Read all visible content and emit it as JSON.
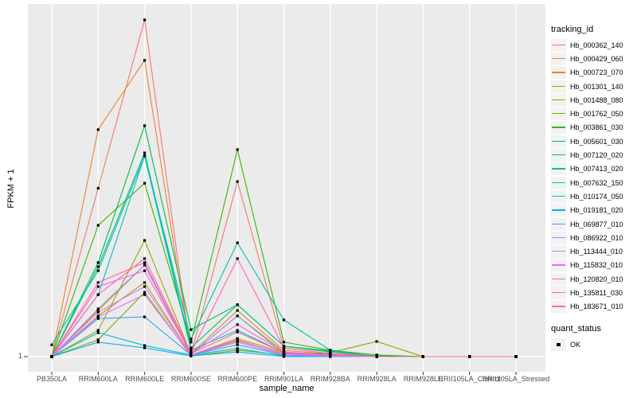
{
  "chart_data": {
    "type": "line",
    "title": "",
    "xlabel": "sample_name",
    "ylabel": "FPKM + 1",
    "categories": [
      "PB350LA",
      "RRIM600LA",
      "RRIM600LE",
      "RRIM600SE",
      "RRIM600PE",
      "RRIM901LA",
      "RRIM928BA",
      "RRIM928LA",
      "RRIM928LE",
      "RRII105LA_Control",
      "RRII105LA_Stressed"
    ],
    "y_axis": {
      "tick_labels": [
        "1"
      ],
      "note": "Only the value 1 is labeled on the y axis; series values below are relative peak heights in % of the tallest peak (Hb_000362_140 at RRIM600LE = 100)."
    },
    "legend_title": "tracking_id",
    "panel_bg": "#EBEBEB",
    "grid_color": "#FFFFFF",
    "point_color": "#000000",
    "legend_key_bg": "#F2F2F2",
    "series": [
      {
        "name": "Hb_000362_140",
        "color": "#F8766D",
        "values": [
          0,
          50,
          100,
          0.7,
          52,
          2.6,
          0.9,
          0.2,
          0,
          0,
          0
        ]
      },
      {
        "name": "Hb_000429_060",
        "color": "#EA8331",
        "values": [
          0,
          67.4,
          88,
          0.9,
          13.7,
          1.9,
          0.7,
          0.2,
          0,
          0,
          0
        ]
      },
      {
        "name": "Hb_000723_070",
        "color": "#D89000",
        "values": [
          0,
          13.7,
          27.2,
          0.5,
          5.4,
          1.2,
          0.5,
          0,
          0,
          0,
          0
        ]
      },
      {
        "name": "Hb_001301_140",
        "color": "#C09B00",
        "values": [
          0,
          12.1,
          22,
          0.5,
          4.7,
          0.9,
          0.2,
          0,
          0,
          0,
          0
        ]
      },
      {
        "name": "Hb_001488_080",
        "color": "#A3A500",
        "values": [
          0,
          7.8,
          34.5,
          0.7,
          12.1,
          1.4,
          0.5,
          0,
          0,
          0,
          0
        ]
      },
      {
        "name": "Hb_001762_050",
        "color": "#7CAE00",
        "values": [
          0,
          5,
          19.1,
          0.2,
          1.9,
          0.5,
          1.2,
          4.5,
          0,
          0,
          0
        ]
      },
      {
        "name": "Hb_003861_030",
        "color": "#39B600",
        "values": [
          0,
          39,
          51.5,
          4.3,
          61.5,
          4.3,
          1.9,
          0.5,
          0,
          0,
          0
        ]
      },
      {
        "name": "Hb_005601_030",
        "color": "#00BB4E",
        "values": [
          0,
          27.9,
          68.6,
          8,
          15.4,
          3.1,
          1.4,
          0.2,
          0,
          0,
          0
        ]
      },
      {
        "name": "Hb_007120_020",
        "color": "#00BF7D",
        "values": [
          0,
          26.7,
          60.5,
          2.6,
          15.4,
          3.1,
          1.7,
          0,
          0,
          0,
          0
        ]
      },
      {
        "name": "Hb_007413_020",
        "color": "#00C1A3",
        "values": [
          3.5,
          25.5,
          59.6,
          5.2,
          33.8,
          10.9,
          1.9,
          0,
          0,
          0,
          0
        ]
      },
      {
        "name": "Hb_007632_150",
        "color": "#00BFC4",
        "values": [
          0,
          18.4,
          59.6,
          1.9,
          7.8,
          1.2,
          0.7,
          0,
          0,
          0,
          0
        ]
      },
      {
        "name": "Hb_010174_050",
        "color": "#00BAE0",
        "values": [
          0,
          7.1,
          3.3,
          0.5,
          2.4,
          0.2,
          0,
          0,
          0,
          0,
          0
        ]
      },
      {
        "name": "Hb_019181_020",
        "color": "#00B0F6",
        "values": [
          0,
          4.3,
          2.6,
          0.2,
          1.4,
          0,
          0,
          0,
          0,
          0,
          0
        ]
      },
      {
        "name": "Hb_069877_010",
        "color": "#35A2FF",
        "values": [
          0,
          11.3,
          11.8,
          0.5,
          3.5,
          0.5,
          0.2,
          0,
          0,
          0,
          0
        ]
      },
      {
        "name": "Hb_086922_010",
        "color": "#9590FF",
        "values": [
          0,
          14.2,
          27.2,
          0.7,
          12.1,
          0.9,
          0.5,
          0,
          0,
          0,
          0
        ]
      },
      {
        "name": "Hb_113444_010",
        "color": "#C77CFF",
        "values": [
          0,
          13.2,
          20.8,
          0.5,
          5,
          0.7,
          0.2,
          0,
          0,
          0,
          0
        ]
      },
      {
        "name": "Hb_115832_010",
        "color": "#E76BF3",
        "values": [
          0,
          11.8,
          18.4,
          0.5,
          4.3,
          0.5,
          0.2,
          0,
          0,
          0,
          0
        ]
      },
      {
        "name": "Hb_120820_010",
        "color": "#FA62DB",
        "values": [
          0,
          20.8,
          25.5,
          0.9,
          9.5,
          1.4,
          0.5,
          0,
          0,
          0,
          0
        ]
      },
      {
        "name": "Hb_135811_030",
        "color": "#FF62BC",
        "values": [
          0,
          18.4,
          29.1,
          1.2,
          29.1,
          2.6,
          0.9,
          0,
          0,
          0,
          0
        ]
      },
      {
        "name": "Hb_183671_010",
        "color": "#FF6A98",
        "values": [
          0,
          22,
          27.9,
          0.9,
          7.3,
          1.2,
          0.5,
          0,
          0,
          0,
          0
        ]
      }
    ],
    "quant_status": {
      "title": "quant_status",
      "items": [
        {
          "label": "OK",
          "marker": "black-square"
        }
      ]
    }
  }
}
